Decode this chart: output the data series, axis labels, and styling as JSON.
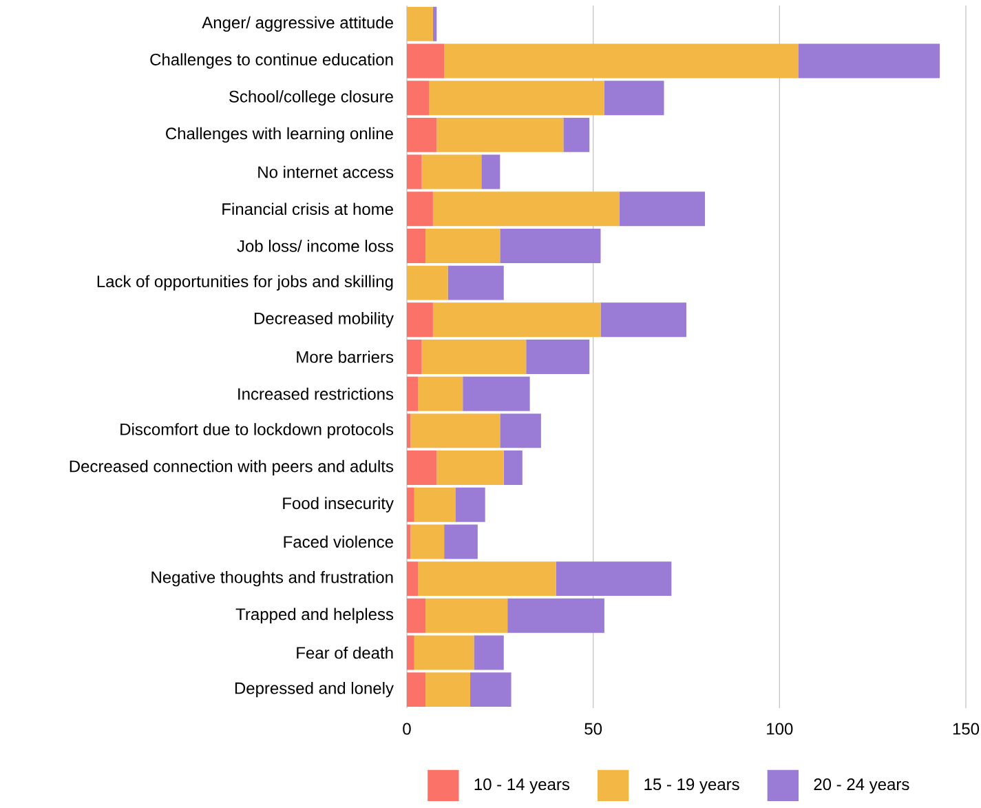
{
  "chart_data": {
    "type": "bar",
    "orientation": "horizontal",
    "stacked": true,
    "grid": "x",
    "legend": "bottom",
    "categories": [
      "Anger/ aggressive attitude",
      "Challenges to continue education",
      "School/college closure",
      "Challenges with learning online",
      "No internet access",
      "Financial crisis at home",
      "Job loss/ income loss",
      "Lack of opportunities for jobs and skilling",
      "Decreased mobility",
      "More barriers",
      "Increased restrictions",
      "Discomfort due to lockdown protocols",
      "Decreased connection with peers and adults",
      "Food insecurity",
      "Faced violence",
      "Negative thoughts and frustration",
      "Trapped and helpless",
      "Fear of death",
      "Depressed and lonely"
    ],
    "series": [
      {
        "name": "10 - 14 years",
        "color": "#fb7268",
        "values": [
          0,
          10,
          6,
          8,
          4,
          7,
          5,
          0,
          7,
          4,
          3,
          1,
          8,
          2,
          1,
          3,
          5,
          2,
          5
        ]
      },
      {
        "name": "15 - 19 years",
        "color": "#f2b745",
        "values": [
          7,
          95,
          47,
          34,
          16,
          50,
          20,
          11,
          45,
          28,
          12,
          24,
          18,
          11,
          9,
          37,
          22,
          16,
          12
        ]
      },
      {
        "name": "20 - 24 years",
        "color": "#9a7cd6",
        "values": [
          1,
          38,
          16,
          7,
          5,
          23,
          27,
          15,
          23,
          17,
          18,
          11,
          5,
          8,
          9,
          31,
          26,
          8,
          11
        ]
      }
    ],
    "xlim": [
      0,
      150
    ],
    "xticks": [
      0,
      50,
      100,
      150
    ]
  }
}
